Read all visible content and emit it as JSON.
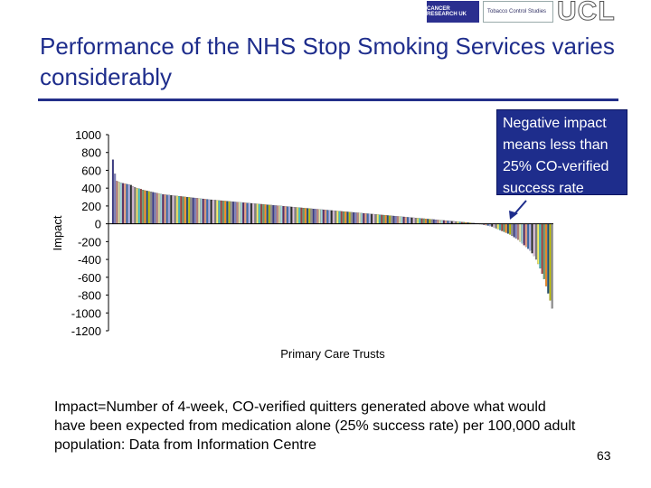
{
  "header": {
    "logo_left_text": "CANCER RESEARCH UK",
    "logo_mid_text": "Tobacco Control Studies",
    "logo_right_text": "UCL"
  },
  "slide": {
    "title": "Performance of the NHS Stop Smoking Services varies considerably",
    "callout": "Negative impact means less than 25% CO-verified success rate",
    "footnote": "Impact=Number of 4-week, CO-verified quitters generated above what would have been expected from medication alone (25% success rate) per 100,000 adult population: Data from Information Centre",
    "page_number": "63"
  },
  "colors": {
    "title": "#1e2d8c",
    "rule": "#232f8a",
    "callout_bg": "#1e2d8c"
  },
  "chart_data": {
    "type": "bar",
    "title": "",
    "xlabel": "Primary Care Trusts",
    "ylabel": "Impact",
    "ylim": [
      -1200,
      1000
    ],
    "yticks": [
      1000,
      800,
      600,
      400,
      200,
      0,
      -200,
      -400,
      -600,
      -800,
      -1000,
      -1200
    ],
    "grid": false,
    "legend": "none",
    "values": [
      720,
      560,
      480,
      470,
      460,
      455,
      450,
      445,
      440,
      435,
      420,
      410,
      400,
      395,
      390,
      380,
      375,
      370,
      365,
      360,
      355,
      350,
      345,
      340,
      335,
      330,
      328,
      325,
      322,
      320,
      318,
      315,
      312,
      310,
      308,
      305,
      302,
      300,
      298,
      295,
      292,
      290,
      288,
      285,
      282,
      280,
      278,
      275,
      272,
      270,
      268,
      266,
      264,
      262,
      260,
      258,
      256,
      254,
      252,
      250,
      248,
      246,
      244,
      242,
      240,
      238,
      236,
      234,
      232,
      230,
      228,
      226,
      224,
      222,
      220,
      218,
      216,
      214,
      212,
      210,
      208,
      206,
      204,
      202,
      200,
      198,
      196,
      194,
      192,
      190,
      188,
      186,
      184,
      182,
      180,
      178,
      176,
      174,
      172,
      170,
      168,
      166,
      164,
      162,
      160,
      158,
      156,
      154,
      152,
      150,
      148,
      146,
      144,
      142,
      140,
      138,
      136,
      134,
      132,
      130,
      128,
      126,
      124,
      122,
      120,
      118,
      116,
      114,
      112,
      110,
      108,
      106,
      104,
      102,
      100,
      98,
      96,
      94,
      92,
      90,
      88,
      86,
      84,
      82,
      80,
      78,
      76,
      74,
      72,
      70,
      68,
      66,
      64,
      62,
      60,
      58,
      56,
      54,
      52,
      50,
      48,
      46,
      44,
      42,
      40,
      38,
      36,
      34,
      32,
      30,
      28,
      26,
      24,
      22,
      20,
      18,
      16,
      14,
      12,
      10,
      8,
      6,
      4,
      2,
      -5,
      -10,
      -15,
      -20,
      -25,
      -30,
      -40,
      -50,
      -60,
      -70,
      -80,
      -90,
      -100,
      -110,
      -120,
      -135,
      -150,
      -165,
      -180,
      -200,
      -220,
      -240,
      -260,
      -280,
      -300,
      -330,
      -360,
      -400,
      -450,
      -500,
      -560,
      -620,
      -700,
      -780,
      -860,
      -950
    ]
  }
}
